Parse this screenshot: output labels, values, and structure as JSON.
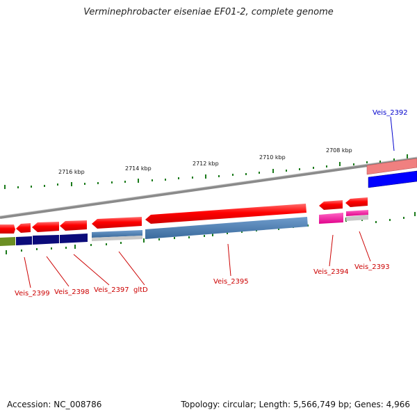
{
  "title": "Verminephrobacter eiseniae EF01-2, complete genome",
  "footer": {
    "accession": "Accession: NC_008786",
    "summary": "Topology: circular; Length: 5,566,749 bp; Genes: 4,966"
  },
  "scale": {
    "tick_labels": [
      "2716 kbp",
      "2714 kbp",
      "2712 kbp",
      "2710 kbp",
      "2708 kbp"
    ]
  },
  "genes": [
    {
      "label": "Veis_2399",
      "color": "#cc0000"
    },
    {
      "label": "Veis_2398",
      "color": "#cc0000"
    },
    {
      "label": "Veis_2397",
      "color": "#cc0000"
    },
    {
      "label": "gltD",
      "color": "#cc0000"
    },
    {
      "label": "Veis_2395",
      "color": "#cc0000"
    },
    {
      "label": "Veis_2394",
      "color": "#cc0000"
    },
    {
      "label": "Veis_2393",
      "color": "#cc0000"
    },
    {
      "label": "Veis_2392",
      "color": "#0000cc"
    }
  ],
  "colors": {
    "cds": "#ff0000",
    "backbone": "#8a8a8a",
    "tick": "#1a7a1a",
    "navy": "#0b0b7a",
    "steel": "#4a7fb5",
    "magenta": "#ff1aa0",
    "olive": "#6b8e23",
    "blue": "#0000ff",
    "pink": "#f08080"
  }
}
